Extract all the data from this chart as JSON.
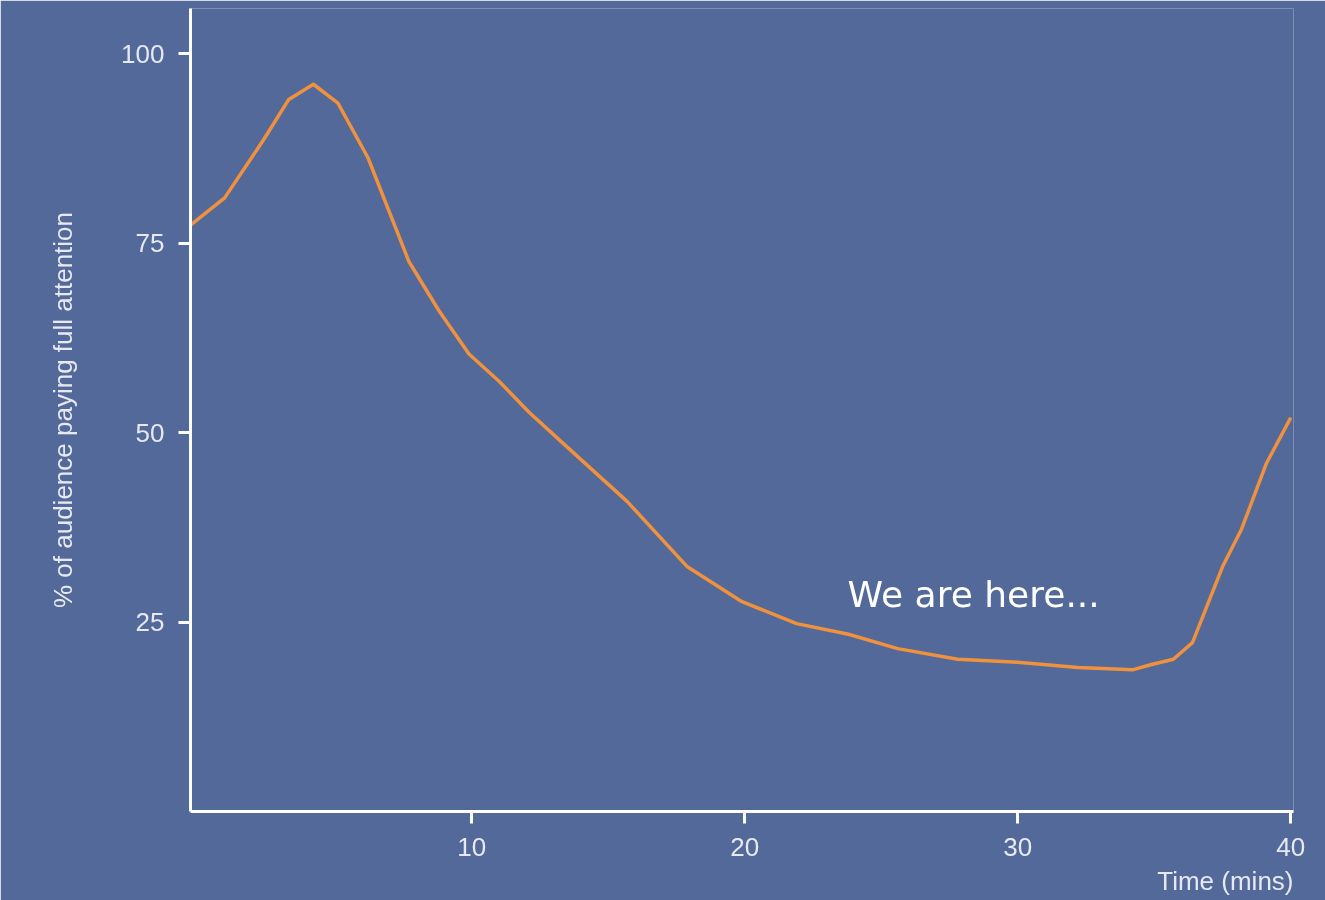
{
  "chart_data": {
    "type": "line",
    "xlabel": "Time (mins)",
    "ylabel": "% of audience paying full attention",
    "x": [
      -0.3,
      0.95,
      2.4,
      3.3,
      4.2,
      5.1,
      6.2,
      7.7,
      8.8,
      9.9,
      11.0,
      12.1,
      13.5,
      15.7,
      17.9,
      19.9,
      21.9,
      23.8,
      25.6,
      27.8,
      30.0,
      32.2,
      34.2,
      34.9,
      35.7,
      36.4,
      37.5,
      38.2,
      39.1,
      40.0
    ],
    "series": [
      {
        "color": "#f0913d",
        "values": [
          77.4,
          81.0,
          88.8,
          94.0,
          96.0,
          93.5,
          86.3,
          72.6,
          66.1,
          60.4,
          56.8,
          52.7,
          48.1,
          40.9,
          32.3,
          27.7,
          24.8,
          23.4,
          21.5,
          20.1,
          19.7,
          19.0,
          18.7,
          19.4,
          20.1,
          22.3,
          32.3,
          37.3,
          45.9,
          52.0
        ]
      }
    ],
    "xlim": [
      -0.3,
      40.1
    ],
    "ylim": [
      0,
      106
    ],
    "xticks": [
      10,
      20,
      30,
      40
    ],
    "yticks": [
      25,
      50,
      75,
      100
    ],
    "grid": false,
    "marker": "none",
    "line_style": "solid",
    "annotations": [
      "We are here..."
    ]
  }
}
